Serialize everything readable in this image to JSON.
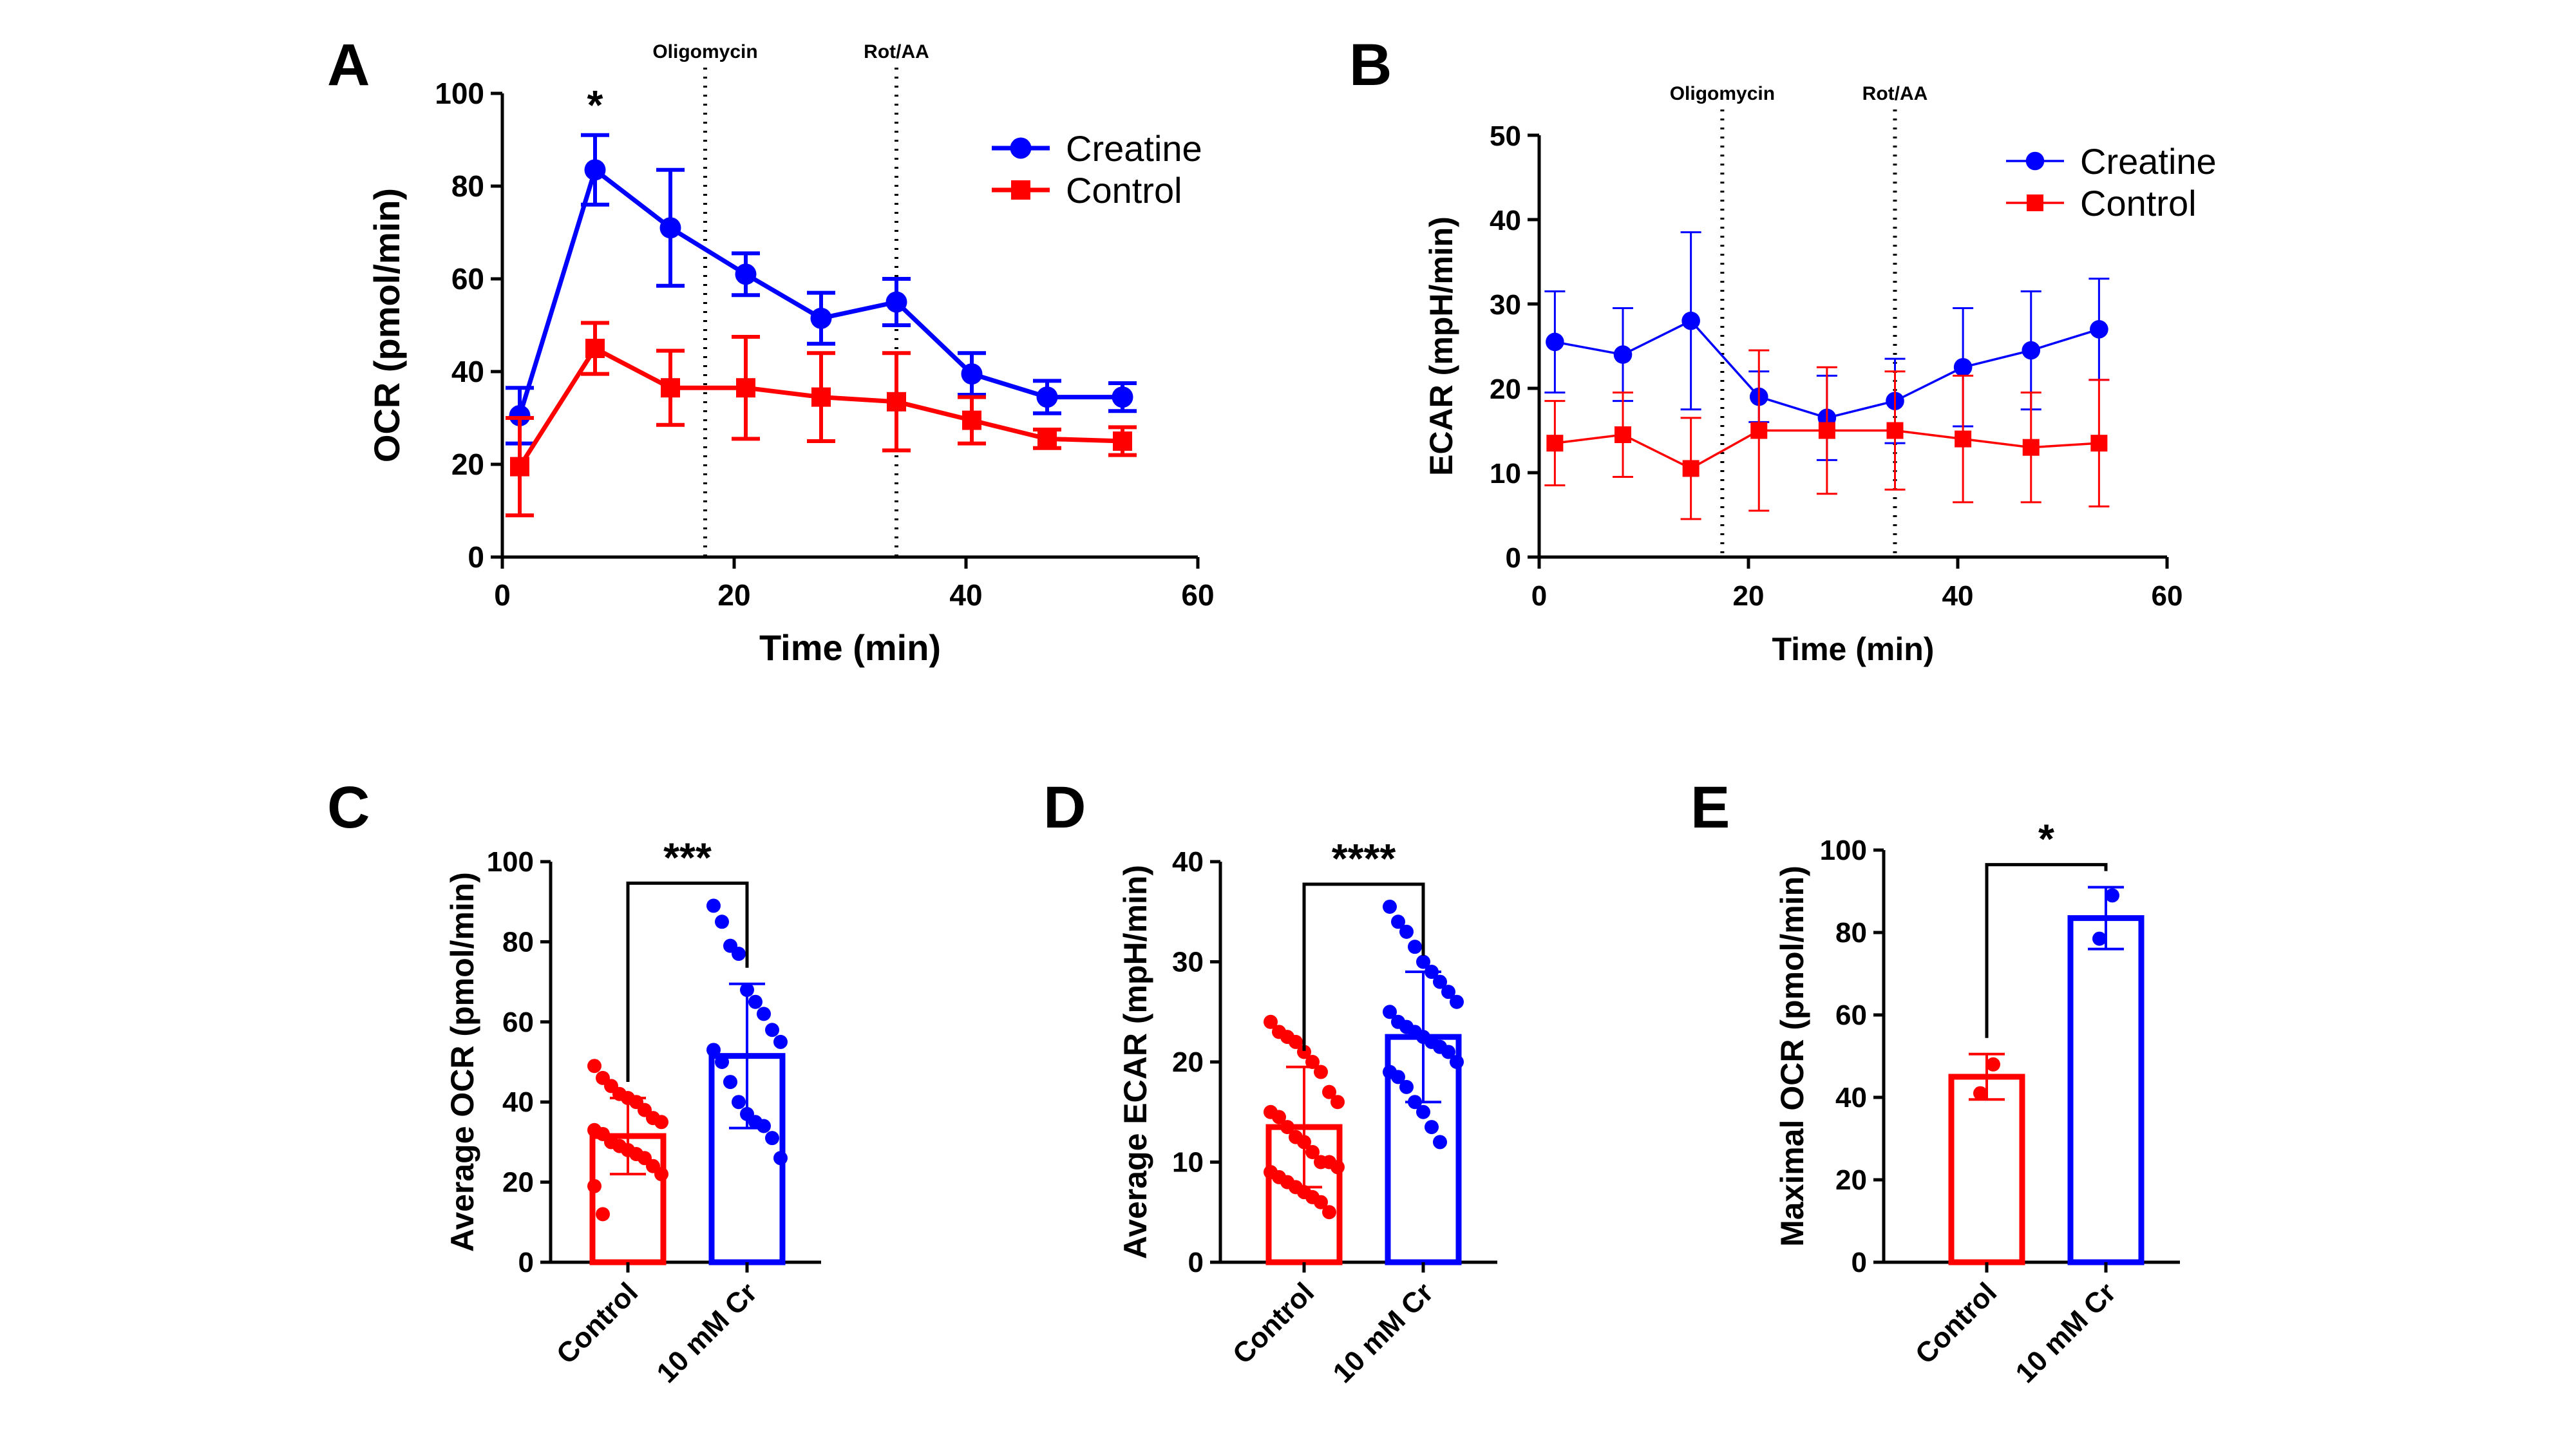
{
  "panels": {
    "A": {
      "letter": "A"
    },
    "B": {
      "letter": "B"
    },
    "C": {
      "letter": "C"
    },
    "D": {
      "letter": "D"
    },
    "E": {
      "letter": "E"
    }
  },
  "colors": {
    "creatine": "#0000ff",
    "control": "#ff0000",
    "axis": "#000000"
  },
  "chart_data": [
    {
      "id": "A",
      "type": "line",
      "title": "",
      "xlabel": "Time (min)",
      "ylabel": "OCR (pmol/min)",
      "xlim": [
        0,
        60
      ],
      "ylim": [
        0,
        100
      ],
      "xticks": [
        0,
        20,
        40,
        60
      ],
      "yticks": [
        0,
        20,
        40,
        60,
        80,
        100
      ],
      "x": [
        1.5,
        8,
        14.5,
        21,
        27.5,
        34,
        40.5,
        47,
        53.5
      ],
      "series": [
        {
          "name": "Creatine",
          "color": "#0000ff",
          "marker": "circle",
          "values": [
            30.5,
            83.5,
            71,
            61,
            51.5,
            55,
            39.5,
            34.5,
            34.5
          ],
          "errors": [
            6,
            7.5,
            12.5,
            4.5,
            5.5,
            5,
            4.5,
            3.5,
            3
          ]
        },
        {
          "name": "Control",
          "color": "#ff0000",
          "marker": "square",
          "values": [
            19.5,
            45,
            36.5,
            36.5,
            34.5,
            33.5,
            29.5,
            25.5,
            25
          ],
          "errors": [
            10.5,
            5.5,
            8,
            11,
            9.5,
            10.5,
            5,
            2,
            3
          ]
        }
      ],
      "vlines": [
        {
          "x": 17.5,
          "label": "Oligomycin"
        },
        {
          "x": 34,
          "label": "Rot/AA"
        }
      ],
      "annotations": [
        {
          "x": 8,
          "text": "*"
        }
      ],
      "legend": "top-right"
    },
    {
      "id": "B",
      "type": "line",
      "title": "",
      "xlabel": "Time (min)",
      "ylabel": "ECAR (mpH/min)",
      "xlim": [
        0,
        60
      ],
      "ylim": [
        0,
        50
      ],
      "xticks": [
        0,
        20,
        40,
        60
      ],
      "yticks": [
        0,
        10,
        20,
        30,
        40,
        50
      ],
      "x": [
        1.5,
        8,
        14.5,
        21,
        27.5,
        34,
        40.5,
        47,
        53.5
      ],
      "series": [
        {
          "name": "Creatine",
          "color": "#0000ff",
          "marker": "circle",
          "values": [
            25.5,
            24,
            28,
            19,
            16.5,
            18.5,
            22.5,
            24.5,
            27
          ],
          "errors": [
            6,
            5.5,
            10.5,
            3,
            5,
            5,
            7,
            7,
            6
          ]
        },
        {
          "name": "Control",
          "color": "#ff0000",
          "marker": "square",
          "values": [
            13.5,
            14.5,
            10.5,
            15,
            15,
            15,
            14,
            13,
            13.5
          ],
          "errors": [
            5,
            5,
            6,
            9.5,
            7.5,
            7,
            7.5,
            6.5,
            7.5
          ]
        }
      ],
      "vlines": [
        {
          "x": 17.5,
          "label": "Oligomycin"
        },
        {
          "x": 34,
          "label": "Rot/AA"
        }
      ],
      "legend": "top-right"
    },
    {
      "id": "C",
      "type": "bar",
      "title": "",
      "xlabel": "",
      "ylabel": "Average OCR (pmol/min)",
      "ylim": [
        0,
        100
      ],
      "yticks": [
        0,
        20,
        40,
        60,
        80,
        100
      ],
      "categories": [
        "Control",
        "10 mM Cr"
      ],
      "colors": [
        "#ff0000",
        "#0000ff"
      ],
      "values": [
        31.5,
        51.5
      ],
      "errors": [
        9.5,
        18
      ],
      "points": [
        [
          49,
          46,
          44,
          42,
          41,
          40,
          38,
          36,
          35,
          33,
          32,
          30,
          29,
          28,
          27,
          26,
          24,
          22,
          19,
          12
        ],
        [
          89,
          85,
          79,
          77,
          68,
          65,
          62,
          58,
          55,
          53,
          50,
          45,
          40,
          37,
          35,
          34,
          31,
          26
        ]
      ],
      "significance": "***"
    },
    {
      "id": "D",
      "type": "bar",
      "title": "",
      "xlabel": "",
      "ylabel": "Average ECAR (mpH/min)",
      "ylim": [
        0,
        40
      ],
      "yticks": [
        0,
        10,
        20,
        30,
        40
      ],
      "categories": [
        "Control",
        "10 mM Cr"
      ],
      "colors": [
        "#ff0000",
        "#0000ff"
      ],
      "values": [
        13.5,
        22.5
      ],
      "errors": [
        6,
        6.5
      ],
      "points": [
        [
          24,
          23,
          22.5,
          22,
          21,
          20,
          19,
          17,
          16,
          15,
          14.5,
          13.5,
          12.5,
          12,
          11,
          10,
          10,
          9.5,
          9,
          8.5,
          8,
          7.5,
          7,
          6.5,
          6,
          5
        ],
        [
          35.5,
          34,
          33,
          31.5,
          30,
          29,
          28,
          27,
          26,
          25,
          24,
          23.5,
          23,
          22.5,
          22,
          21.5,
          21,
          20,
          19,
          18.5,
          17.5,
          16,
          15,
          13.5,
          12
        ]
      ],
      "significance": "****"
    },
    {
      "id": "E",
      "type": "bar",
      "title": "",
      "xlabel": "",
      "ylabel": "Maximal OCR (pmol/min)",
      "ylim": [
        0,
        100
      ],
      "yticks": [
        0,
        20,
        40,
        60,
        80,
        100
      ],
      "categories": [
        "Control",
        "10 mM Cr"
      ],
      "colors": [
        "#ff0000",
        "#0000ff"
      ],
      "values": [
        45,
        83.5
      ],
      "errors": [
        5.5,
        7.5
      ],
      "points": [
        [
          48,
          41
        ],
        [
          89,
          78.5
        ]
      ],
      "significance": "*"
    }
  ]
}
